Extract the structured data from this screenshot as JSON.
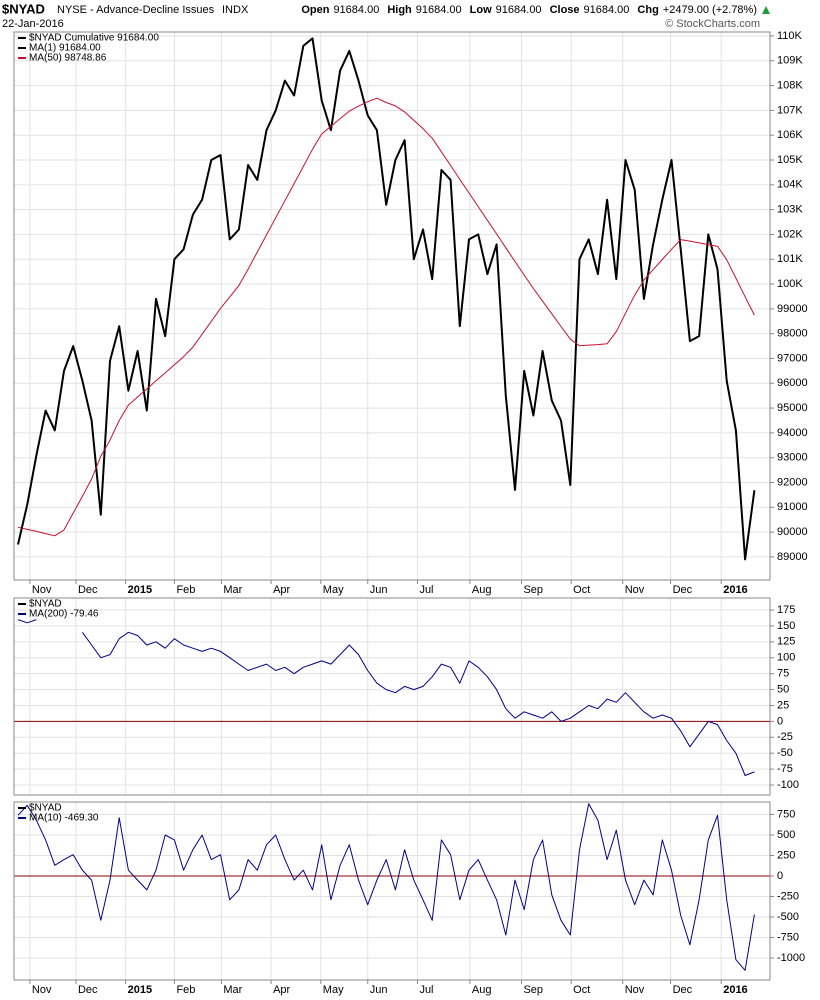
{
  "header": {
    "symbol": "$NYAD",
    "exchange_name": "NYSE - Advance-Decline Issues",
    "index_type": "INDX",
    "date": "22-Jan-2016",
    "copyright": "© StockCharts.com",
    "quote": [
      {
        "key": "Open",
        "value": "91684.00"
      },
      {
        "key": "High",
        "value": "91684.00"
      },
      {
        "key": "Low",
        "value": "91684.00"
      },
      {
        "key": "Close",
        "value": "91684.00"
      },
      {
        "key": "Chg",
        "value": "+2479.00 (+2.78%)"
      }
    ]
  },
  "chart_data": [
    {
      "type": "line",
      "legend_title": "$NYAD Cumulative 91684.00",
      "legend_title_color": "#000000",
      "xlim": [
        -0.43,
        81.7
      ],
      "xticks": [
        {
          "value": 1.3,
          "label": "Nov"
        },
        {
          "value": 6.3,
          "label": "Dec"
        },
        {
          "value": 11.7,
          "label": "2015"
        },
        {
          "value": 17,
          "label": "Feb"
        },
        {
          "value": 22.1,
          "label": "Mar"
        },
        {
          "value": 27.5,
          "label": "Apr"
        },
        {
          "value": 32.9,
          "label": "May"
        },
        {
          "value": 38,
          "label": "Jun"
        },
        {
          "value": 43.4,
          "label": "Jul"
        },
        {
          "value": 49.1,
          "label": "Aug"
        },
        {
          "value": 54.7,
          "label": "Sep"
        },
        {
          "value": 60.1,
          "label": "Oct"
        },
        {
          "value": 65.7,
          "label": "Nov"
        },
        {
          "value": 70.9,
          "label": "Dec"
        },
        {
          "value": 76.4,
          "label": "2016"
        }
      ],
      "ylim": [
        88070,
        110160
      ],
      "yticks": [
        {
          "value": 110000,
          "label": "110K"
        },
        {
          "value": 109000,
          "label": "109K"
        },
        {
          "value": 108000,
          "label": "108K"
        },
        {
          "value": 107000,
          "label": "107K"
        },
        {
          "value": 106000,
          "label": "106K"
        },
        {
          "value": 105000,
          "label": "105K"
        },
        {
          "value": 104000,
          "label": "104K"
        },
        {
          "value": 103000,
          "label": "103K"
        },
        {
          "value": 102000,
          "label": "102K"
        },
        {
          "value": 101000,
          "label": "101K"
        },
        {
          "value": 100000,
          "label": "100K"
        },
        99000,
        98000,
        97000,
        96000,
        95000,
        94000,
        93000,
        92000,
        91000,
        90000,
        89000
      ],
      "grid": true,
      "series": [
        {
          "name": "MA(1) 91684.00",
          "color": "#000000",
          "width": 2,
          "values": [
            89500,
            91100,
            93100,
            94900,
            94100,
            96500,
            97500,
            96100,
            94500,
            90700,
            96900,
            98300,
            95700,
            97300,
            94900,
            99400,
            97900,
            101000,
            101400,
            102800,
            103400,
            105000,
            105200,
            101800,
            102200,
            104800,
            104200,
            106200,
            107000,
            108200,
            107600,
            109600,
            109900,
            107400,
            106200,
            108600,
            109400,
            108200,
            106800,
            106200,
            103200,
            105000,
            105800,
            101000,
            102200,
            100200,
            104600,
            104200,
            98300,
            101800,
            102000,
            100400,
            101600,
            95500,
            91700,
            96500,
            94700,
            97300,
            95300,
            94500,
            91900,
            101000,
            101800,
            100400,
            103400,
            100200,
            105000,
            103800,
            99400,
            101600,
            103400,
            105000,
            101400,
            97700,
            97900,
            102000,
            100600,
            96100,
            94100,
            88900,
            91684
          ]
        },
        {
          "name": "MA(50) 98748.86",
          "color": "#c8102e",
          "width": 1,
          "values": [
            90200,
            90110,
            90030,
            89940,
            89850,
            90090,
            90770,
            91440,
            92140,
            93060,
            93710,
            94500,
            95120,
            95450,
            95770,
            96100,
            96420,
            96750,
            97070,
            97460,
            97980,
            98500,
            99020,
            99480,
            99940,
            100600,
            101290,
            101980,
            102670,
            103360,
            104050,
            104740,
            105430,
            106050,
            106360,
            106670,
            106970,
            107170,
            107350,
            107490,
            107320,
            107180,
            106940,
            106600,
            106260,
            105880,
            105330,
            104780,
            104220,
            103670,
            103120,
            102570,
            102020,
            101460,
            100910,
            100360,
            99820,
            99310,
            98800,
            98290,
            97780,
            97510,
            97540,
            97560,
            97590,
            98080,
            98820,
            99550,
            100160,
            100580,
            100990,
            101400,
            101790,
            101730,
            101660,
            101590,
            101520,
            100980,
            100240,
            99490,
            98748.86
          ]
        }
      ]
    },
    {
      "type": "line",
      "legend_title": "$NYAD",
      "legend_title_color": "#000000",
      "xlim": [
        -0.43,
        81.7
      ],
      "ylim": [
        -115.7,
        193.9
      ],
      "yticks": [
        175,
        150,
        125,
        100,
        75,
        50,
        25,
        0,
        -25,
        -50,
        -75,
        -100
      ],
      "grid": true,
      "hline": 0,
      "hline_color": "#8b0000",
      "series": [
        {
          "name": "MA(200) -79.46",
          "color": "#00008b",
          "width": 1,
          "values": [
            160,
            155,
            160,
            null,
            null,
            null,
            null,
            140,
            120,
            100,
            105,
            130,
            140,
            135,
            120,
            125,
            115,
            130,
            120,
            115,
            110,
            115,
            110,
            100,
            90,
            80,
            85,
            90,
            80,
            85,
            75,
            85,
            90,
            95,
            90,
            105,
            120,
            105,
            80,
            60,
            50,
            45,
            55,
            50,
            55,
            70,
            90,
            85,
            60,
            95,
            85,
            70,
            50,
            20,
            5,
            15,
            10,
            5,
            15,
            0,
            5,
            15,
            25,
            20,
            35,
            30,
            45,
            30,
            15,
            5,
            10,
            5,
            -15,
            -40,
            -20,
            0,
            -5,
            -30,
            -50,
            -85,
            -79.46
          ]
        }
      ]
    },
    {
      "type": "line",
      "legend_title": "$NYAD",
      "legend_title_color": "#000000",
      "xlim": [
        -0.43,
        81.7
      ],
      "xticks": [
        {
          "value": 1.3,
          "label": "Nov"
        },
        {
          "value": 6.3,
          "label": "Dec"
        },
        {
          "value": 11.7,
          "label": "2015"
        },
        {
          "value": 17,
          "label": "Feb"
        },
        {
          "value": 22.1,
          "label": "Mar"
        },
        {
          "value": 27.5,
          "label": "Apr"
        },
        {
          "value": 32.9,
          "label": "May"
        },
        {
          "value": 38,
          "label": "Jun"
        },
        {
          "value": 43.4,
          "label": "Jul"
        },
        {
          "value": 49.1,
          "label": "Aug"
        },
        {
          "value": 54.7,
          "label": "Sep"
        },
        {
          "value": 60.1,
          "label": "Oct"
        },
        {
          "value": 65.7,
          "label": "Nov"
        },
        {
          "value": 70.9,
          "label": "Dec"
        },
        {
          "value": 76.4,
          "label": "2016"
        }
      ],
      "ylim": [
        -1268,
        902
      ],
      "yticks": [
        750,
        500,
        250,
        0,
        -250,
        -500,
        -750,
        -1000
      ],
      "grid": true,
      "hline": 0,
      "hline_color": "#8b0000",
      "series": [
        {
          "name": "MA(10) -469.30",
          "color": "#00008b",
          "width": 1,
          "values": [
            740,
            860,
            680,
            440,
            130,
            200,
            260,
            70,
            -50,
            -540,
            -50,
            710,
            70,
            -50,
            -170,
            70,
            500,
            440,
            70,
            320,
            500,
            200,
            260,
            -290,
            -170,
            200,
            70,
            380,
            500,
            200,
            -50,
            70,
            -170,
            380,
            -290,
            130,
            380,
            -50,
            -350,
            -50,
            200,
            -170,
            320,
            -50,
            -290,
            -540,
            440,
            260,
            -290,
            70,
            200,
            -50,
            -290,
            -720,
            -50,
            -410,
            200,
            440,
            -230,
            -540,
            -720,
            320,
            880,
            680,
            200,
            560,
            -50,
            -350,
            -50,
            -230,
            440,
            70,
            -480,
            -840,
            -290,
            440,
            740,
            -290,
            -1020,
            -1150,
            -469.3
          ]
        }
      ]
    }
  ]
}
